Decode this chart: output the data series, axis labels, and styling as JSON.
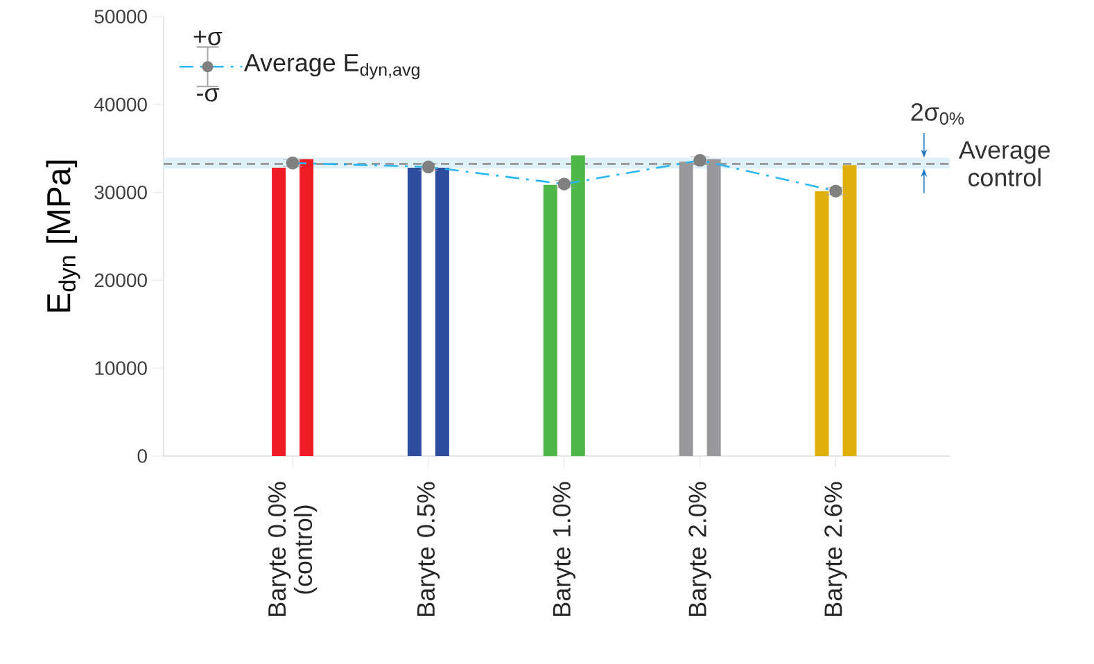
{
  "chart_data": {
    "type": "bar",
    "ylabel": "E$_{dyn}$ [MPa]",
    "categories": [
      "Baryte 0.0% (control)",
      "Baryte 0.5%",
      "Baryte 1.0%",
      "Baryte 2.0%",
      "Baryte 2.6%"
    ],
    "ylim": [
      0,
      50000
    ],
    "yticks": [
      0,
      10000,
      20000,
      30000,
      40000,
      50000
    ],
    "series": [
      {
        "colors": [
          "#ee1c25",
          "#2e4d9f",
          "#4db748",
          "#99999c",
          "#e0b00e"
        ],
        "values": [
          32800,
          32800,
          30850,
          33500,
          30150
        ]
      },
      {
        "colors": [
          "#ee1c25",
          "#2e4d9f",
          "#4db748",
          "#99999c",
          "#e0b00e"
        ],
        "values": [
          33800,
          32800,
          34200,
          33800,
          33100
        ]
      },
      {
        "type": "line",
        "name": "Average E$_{dyn,avg}$",
        "color": "#29b6f6",
        "values": [
          33350,
          32900,
          30950,
          33650,
          30150
        ],
        "errors": [
          400,
          400,
          400,
          400,
          400
        ],
        "marker": "circle",
        "line_style": "dashed"
      }
    ],
    "ref_lines": [
      {
        "axis": "y",
        "value": 33240,
        "label": "Average control",
        "color": "#8a8a8a",
        "line_style": "dashed"
      }
    ],
    "bands": [
      {
        "axis": "y",
        "from": 32700,
        "to": 33950,
        "label": "2σ$_{0%}$",
        "color": "#dff1f6"
      }
    ],
    "annotations": [
      "+σ",
      "-σ"
    ],
    "legend": "top left",
    "grid": false
  }
}
